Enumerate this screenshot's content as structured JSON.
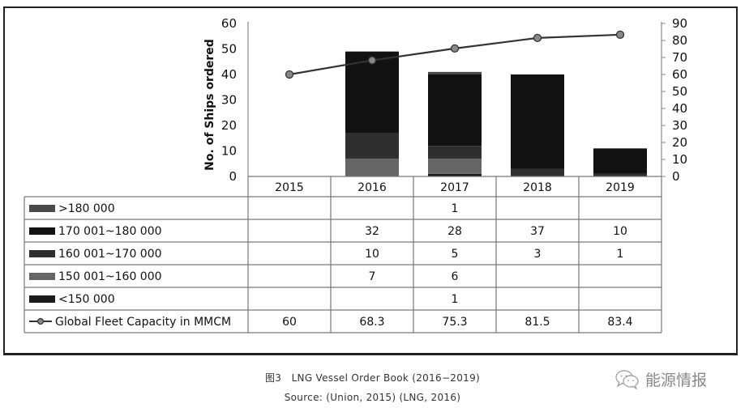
{
  "chart_data": {
    "type": "bar",
    "stacked": true,
    "title": "LNG Vessel Order Book (2016–2019)",
    "categories": [
      "2015",
      "2016",
      "2017",
      "2018",
      "2019"
    ],
    "ylabel": "No. of Ships ordered",
    "ylim": [
      0,
      60
    ],
    "yticks": [
      "0",
      "10",
      "20",
      "30",
      "40",
      "50",
      "60"
    ],
    "y2lim": [
      0,
      90
    ],
    "y2ticks": [
      "0",
      "10",
      "20",
      "30",
      "40",
      "50",
      "60",
      "70",
      "80",
      "90"
    ],
    "series": [
      {
        "name": "<150 000",
        "color": "#1a1a1a",
        "values": [
          null,
          null,
          1,
          null,
          null
        ]
      },
      {
        "name": "150 001~160 000",
        "color": "#666666",
        "values": [
          null,
          7,
          6,
          null,
          null
        ]
      },
      {
        "name": "160 001~170 000",
        "color": "#2f2f2f",
        "values": [
          null,
          10,
          5,
          3,
          1
        ]
      },
      {
        "name": "170 001~180 000",
        "color": "#121212",
        "values": [
          null,
          32,
          28,
          37,
          10
        ]
      },
      {
        "name": ">180 000",
        "color": "#4a4a4a",
        "values": [
          null,
          null,
          1,
          null,
          null
        ]
      }
    ],
    "line_series": {
      "name": "Global Fleet Capacity in MMCM",
      "axis": "secondary",
      "color": "#333333",
      "marker_color": "#888888",
      "values": [
        60,
        68.3,
        75.3,
        81.5,
        83.4
      ],
      "labels": [
        "60",
        "68.3",
        "75.3",
        "81.5",
        "83.4"
      ]
    },
    "table_rows_order": [
      ">180 000",
      "170 001~180 000",
      "160 001~170 000",
      "150 001~160 000",
      "<150 000",
      "Global Fleet Capacity in MMCM"
    ],
    "legend": "data-table-left",
    "grid": false
  },
  "caption": {
    "figure_label": "图3",
    "title": "LNG Vessel Order Book (2016−2019)",
    "source": "Source: (Union, 2015) (LNG, 2016)"
  },
  "watermark": {
    "icon": "wechat-icon",
    "text": "能源情报"
  }
}
